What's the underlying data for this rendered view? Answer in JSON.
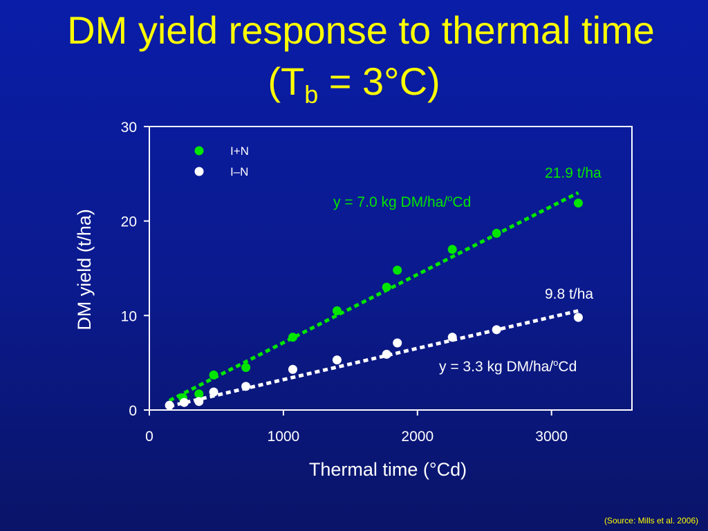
{
  "title": {
    "line1": "DM yield response to thermal time",
    "line2_prefix": "(T",
    "line2_sub": "b",
    "line2_suffix": " = 3°C)"
  },
  "colors": {
    "background": "#0b1a8c",
    "title": "#ffff00",
    "series_IN": "#00e600",
    "series_IminusN": "#ffffff"
  },
  "chart_data": {
    "type": "scatter",
    "xlabel": "Thermal time (°Cd)",
    "ylabel": "DM yield (t/ha)",
    "xlim": [
      0,
      3600
    ],
    "ylim": [
      0,
      30
    ],
    "xticks": [
      "0",
      "1000",
      "2000",
      "3000"
    ],
    "yticks": [
      "0",
      "10",
      "20",
      "30"
    ],
    "legend_position": "top-left",
    "series": [
      {
        "name": "I+N",
        "color": "#00e600",
        "x": [
          250,
          370,
          480,
          720,
          1070,
          1400,
          1770,
          1850,
          2260,
          2590,
          3200
        ],
        "y": [
          1.3,
          1.7,
          3.7,
          4.5,
          7.7,
          10.5,
          13.0,
          14.8,
          17.0,
          18.7,
          21.9
        ]
      },
      {
        "name": "I–N",
        "color": "#ffffff",
        "x": [
          150,
          260,
          370,
          480,
          720,
          1070,
          1400,
          1770,
          1850,
          2260,
          2590,
          3200
        ],
        "y": [
          0.5,
          0.8,
          0.9,
          1.9,
          2.5,
          4.3,
          5.3,
          5.9,
          7.1,
          7.7,
          8.5,
          9.8
        ]
      }
    ],
    "trendlines": [
      {
        "series": "I+N",
        "color": "#00e600",
        "x": [
          150,
          3200
        ],
        "y": [
          1.0,
          23.0
        ]
      },
      {
        "series": "I–N",
        "color": "#ffffff",
        "x": [
          150,
          3200
        ],
        "y": [
          0.4,
          10.5
        ]
      }
    ],
    "annotations": {
      "green_end": "21.9 t/ha",
      "green_eq_main": "y = 7.0 kg DM/ha/",
      "green_eq_sup": "o",
      "green_eq_tail": "Cd",
      "white_end": "9.8 t/ha",
      "white_eq_main": "y = 3.3 kg DM/ha/",
      "white_eq_sup": "o",
      "white_eq_tail": "Cd"
    },
    "source": "(Source: Mills et al. 2006)"
  }
}
